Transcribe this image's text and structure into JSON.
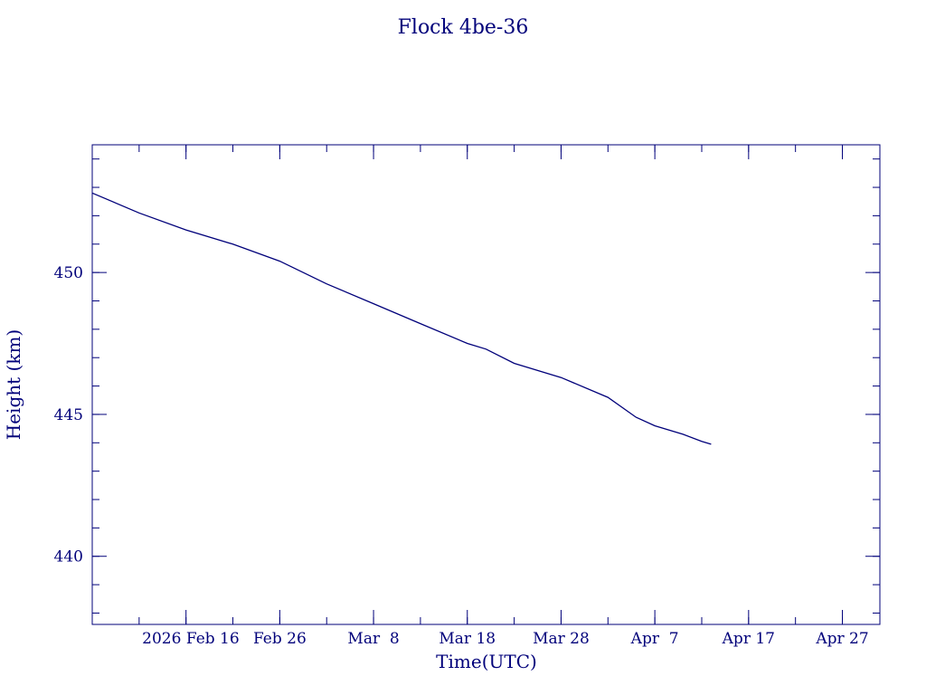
{
  "chart_data": {
    "type": "line",
    "title": "Flock 4be-36",
    "xlabel": "Time(UTC)",
    "ylabel": "Height (km)",
    "color": "#00007a",
    "grid": false,
    "x_range": [
      "2026-02-06",
      "2026-05-01"
    ],
    "ylim": [
      437.6,
      454.5
    ],
    "y_ticks": [
      440,
      445,
      450
    ],
    "y_tick_labels": [
      "440",
      "445",
      "450"
    ],
    "y_minor_step": 1,
    "x_ticks": [
      "2026-02-16",
      "2026-02-26",
      "2026-03-08",
      "2026-03-18",
      "2026-03-28",
      "2026-04-07",
      "2026-04-17",
      "2026-04-27"
    ],
    "x_tick_labels": [
      "2026 Feb 16",
      "Feb 26",
      "Mar  8",
      "Mar 18",
      "Mar 28",
      "Apr  7",
      "Apr 17",
      "Apr 27"
    ],
    "x_minor_step_days": 5,
    "series": [
      {
        "x": [
          "2026-02-06",
          "2026-02-11",
          "2026-02-16",
          "2026-02-21",
          "2026-02-26",
          "2026-03-03",
          "2026-03-08",
          "2026-03-13",
          "2026-03-18",
          "2026-03-20",
          "2026-03-23",
          "2026-03-28",
          "2026-04-02",
          "2026-04-05",
          "2026-04-07",
          "2026-04-10",
          "2026-04-12",
          "2026-04-13"
        ],
        "y": [
          452.8,
          452.1,
          451.5,
          451.0,
          450.4,
          449.6,
          448.9,
          448.2,
          447.5,
          447.3,
          446.8,
          446.3,
          445.6,
          444.9,
          444.6,
          444.3,
          444.05,
          443.95
        ]
      }
    ]
  }
}
